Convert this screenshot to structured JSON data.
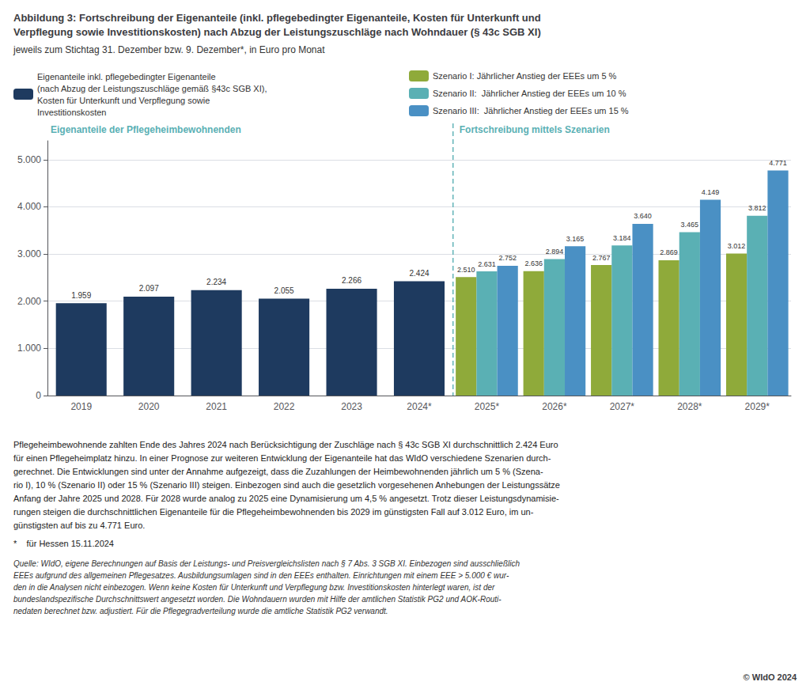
{
  "chart_data": {
    "type": "bar",
    "title": "Abbildung 3: Fortschreibung der Eigenanteile (inkl. pflegebedingter Eigenanteile, Kosten für Unterkunft und\nVerpflegung sowie Investitionskosten) nach Abzug der Leistungszuschläge nach Wohndauer (§ 43c SGB XI)",
    "subtitle": "jeweils zum Stichtag 31. Dezember bzw. 9. Dezember*, in Euro pro Monat",
    "categories": [
      "2019",
      "2020",
      "2021",
      "2022",
      "2023",
      "2024*",
      "2025*",
      "2026*",
      "2027*",
      "2028*",
      "2029*"
    ],
    "series": [
      {
        "name": "Eigenanteile inkl. pflegebedingter Eigenanteile\n(nach Abzug der Leistungszuschläge gemäß §43c SGB XI),\nKosten für Unterkunft und Verpflegung sowie\nInvestitionskosten",
        "color": "#1e3a5f",
        "values": [
          1959,
          2097,
          2234,
          2055,
          2266,
          2424,
          null,
          null,
          null,
          null,
          null
        ],
        "value_labels": [
          "1.959",
          "2.097",
          "2.234",
          "2.055",
          "2.266",
          "2.424",
          null,
          null,
          null,
          null,
          null
        ]
      },
      {
        "name": "Szenario I: Jährlicher Anstieg der EEEs um 5 %",
        "color": "#8faa3a",
        "values": [
          null,
          null,
          null,
          null,
          null,
          null,
          2510,
          2636,
          2767,
          2869,
          3012
        ],
        "value_labels": [
          null,
          null,
          null,
          null,
          null,
          null,
          "2.510",
          "2.636",
          "2.767",
          "2.869",
          "3.012"
        ]
      },
      {
        "name": "Szenario II:  Jährlicher Anstieg der EEEs um 10 %",
        "color": "#5ab0b4",
        "values": [
          null,
          null,
          null,
          null,
          null,
          null,
          2631,
          2894,
          3184,
          3465,
          3812
        ],
        "value_labels": [
          null,
          null,
          null,
          null,
          null,
          null,
          "2.631",
          "2.894",
          "3.184",
          "3.465",
          "3.812"
        ]
      },
      {
        "name": "Szenario III:  Jährlicher Anstieg der EEEs um 15 %",
        "color": "#4a90c4",
        "values": [
          null,
          null,
          null,
          null,
          null,
          null,
          2752,
          3165,
          3640,
          4149,
          4771
        ],
        "value_labels": [
          null,
          null,
          null,
          null,
          null,
          null,
          "2.752",
          "3.165",
          "3.640",
          "4.149",
          "4.771"
        ]
      }
    ],
    "ylim": [
      0,
      5400
    ],
    "yticks": [
      0,
      {
        "value": 1000,
        "label": "1.000"
      },
      {
        "value": 2000,
        "label": "2.000"
      },
      {
        "value": 3000,
        "label": "3.000"
      },
      {
        "value": 4000,
        "label": "4.000"
      },
      {
        "value": 5000,
        "label": "5.000"
      }
    ],
    "grid": true,
    "legend": "top",
    "data_labels": true,
    "annotations": [
      {
        "text": "Eigenanteile der Pflegeheimbewohnenden",
        "color": "#5ab0b4"
      },
      {
        "text": "Fortschreibung mittels Szenarien",
        "color": "#5ab0b4"
      }
    ],
    "body_text": "Pflegeheimbewohnende zahlten Ende des Jahres 2024 nach Berücksichtigung der Zuschläge nach § 43c SGB XI durchschnittlich 2.424 Euro\nfür einen Pflegeheimplatz hinzu. In einer Prognose zur weiteren Entwicklung der Eigenanteile hat das WIdO verschiedene Szenarien durch-\ngerechnet. Die Entwicklungen sind unter der Annahme aufgezeigt, dass die Zuzahlungen der Heimbewohnenden jährlich um 5 % (Szena-\nrio I), 10 % (Szenario II) oder 15 % (Szenario III) steigen. Einbezogen sind auch die gesetzlich vorgesehenen Anhebungen der Leistungssätze\nAnfang der Jahre 2025 und 2028. Für 2028 wurde analog zu 2025 eine Dynamisierung um 4,5 % angesetzt. Trotz dieser Leistungsdynamisie-\nrungen steigen die durchschnittlichen Eigenanteile für die Pflegeheimbewohnenden bis 2029 im günstigsten Fall auf 3.012 Euro, im un-\ngünstigsten auf bis zu 4.771 Euro.",
    "footnote": "*    für Hessen 15.11.2024",
    "source": "Quelle: WIdO, eigene Berechnungen auf Basis der Leistungs- und Preisvergleichslisten nach § 7 Abs. 3 SGB XI. Einbezogen sind ausschließlich\nEEEs aufgrund des allgemeinen Pflegesatzes. Ausbildungsumlagen sind in den EEEs enthalten. Einrichtungen mit einem EEE > 5.000 € wur-\nden in die Analysen nicht einbezogen. Wenn keine Kosten für Unterkunft und Verpflegung bzw. Investitionskosten hinterlegt waren, ist der\nbundeslandspezifische Durchschnittswert angesetzt worden. Die Wohndauern wurden mit Hilfe der amtlichen Statistik PG2 und AOK-Routi-\nnedaten berechnet bzw. adjustiert. Für die Pflegegradverteilung wurde die amtliche Statistik PG2 verwandt.",
    "copyright": "© WIdO 2024"
  }
}
